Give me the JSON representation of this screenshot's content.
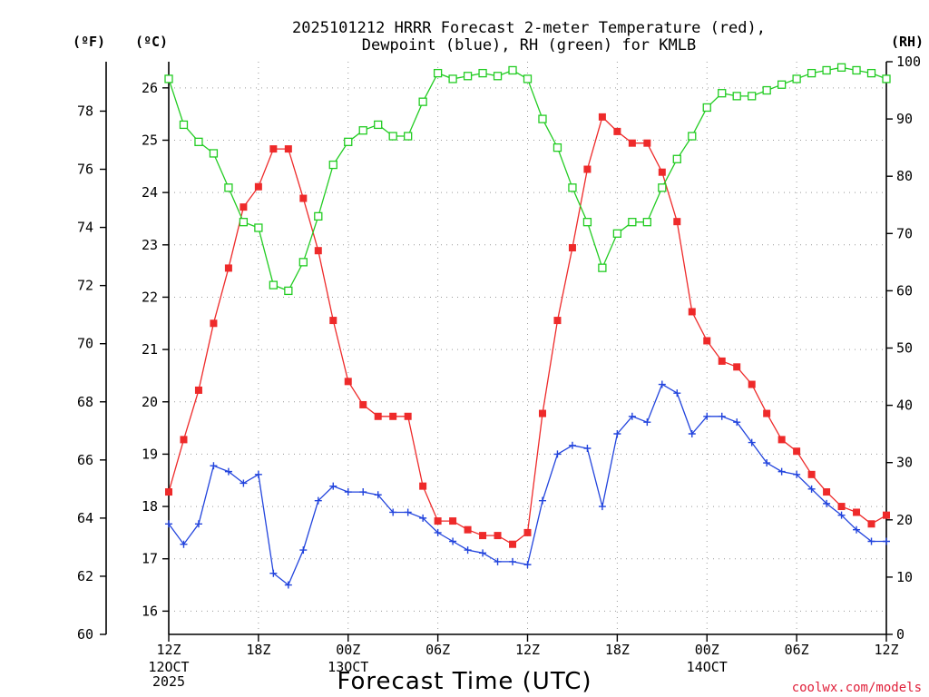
{
  "colors": {
    "temperature": "#ee2a2a",
    "dewpoint": "#2244dd",
    "rh": "#22cc22",
    "grid": "#999999",
    "credit": "#e0203a"
  },
  "header": {
    "title_line1": "2025101212 HRRR Forecast 2-meter Temperature (red),",
    "title_line2": "Dewpoint (blue), RH (green) for KMLB"
  },
  "axes": {
    "left_f_unit": "(ºF)",
    "left_c_unit": "(ºC)",
    "right_unit": "(RH)",
    "xlabel": "Forecast Time (UTC)",
    "credit": "coolwx.com/models"
  },
  "chart_data": {
    "type": "line",
    "title": "2025101212 HRRR Forecast 2-meter Temperature (red), Dewpoint (blue), RH (green) for KMLB",
    "xlabel": "Forecast Time (UTC)",
    "x_unit": "forecast hour from 2025-10-12 12Z",
    "x": [
      0,
      1,
      2,
      3,
      4,
      5,
      6,
      7,
      8,
      9,
      10,
      11,
      12,
      13,
      14,
      15,
      16,
      17,
      18,
      19,
      20,
      21,
      22,
      23,
      24,
      25,
      26,
      27,
      28,
      29,
      30,
      31,
      32,
      33,
      34,
      35,
      36,
      37,
      38,
      39,
      40,
      41,
      42,
      43,
      44,
      45,
      46,
      47,
      48
    ],
    "xlim": [
      0,
      48
    ],
    "x_ticks": [
      {
        "hour": 0,
        "label": "12Z",
        "sub": [
          "12OCT",
          "2025"
        ]
      },
      {
        "hour": 6,
        "label": "18Z",
        "sub": []
      },
      {
        "hour": 12,
        "label": "00Z",
        "sub": [
          "13OCT"
        ]
      },
      {
        "hour": 18,
        "label": "06Z",
        "sub": []
      },
      {
        "hour": 24,
        "label": "12Z",
        "sub": []
      },
      {
        "hour": 30,
        "label": "18Z",
        "sub": []
      },
      {
        "hour": 36,
        "label": "00Z",
        "sub": [
          "14OCT"
        ]
      },
      {
        "hour": 42,
        "label": "06Z",
        "sub": []
      },
      {
        "hour": 48,
        "label": "12Z",
        "sub": []
      }
    ],
    "left_f_ticks": [
      60,
      62,
      64,
      66,
      68,
      70,
      72,
      74,
      76,
      78
    ],
    "left_c_ticks": [
      16,
      17,
      18,
      19,
      20,
      21,
      22,
      23,
      24,
      25,
      26
    ],
    "right_rh_ticks": [
      0,
      10,
      20,
      30,
      40,
      50,
      60,
      70,
      80,
      90,
      100
    ],
    "ylim_f": [
      60,
      79.7
    ],
    "ylim_rh": [
      0,
      100
    ],
    "grid": true,
    "series": [
      {
        "name": "2-meter Temperature (red)",
        "unit": "F",
        "axis": "F",
        "marker": "filled-square",
        "values": [
          64.9,
          66.7,
          68.4,
          70.7,
          72.6,
          74.7,
          75.4,
          76.7,
          76.7,
          75.0,
          73.2,
          70.8,
          68.7,
          67.9,
          67.5,
          67.5,
          67.5,
          65.1,
          63.9,
          63.9,
          63.6,
          63.4,
          63.4,
          63.1,
          63.5,
          67.6,
          70.8,
          73.3,
          76.0,
          77.8,
          77.3,
          76.9,
          76.9,
          75.9,
          74.2,
          71.1,
          70.1,
          69.4,
          69.2,
          68.6,
          67.6,
          66.7,
          66.3,
          65.5,
          64.9,
          64.4,
          64.2,
          63.8,
          64.1
        ]
      },
      {
        "name": "Dewpoint (blue)",
        "unit": "F",
        "axis": "F",
        "marker": "plus",
        "values": [
          63.8,
          63.1,
          63.8,
          65.8,
          65.6,
          65.2,
          65.5,
          62.1,
          61.7,
          62.9,
          64.6,
          65.1,
          64.9,
          64.9,
          64.8,
          64.2,
          64.2,
          64.0,
          63.5,
          63.2,
          62.9,
          62.8,
          62.5,
          62.5,
          62.4,
          64.6,
          66.2,
          66.5,
          66.4,
          64.4,
          66.9,
          67.5,
          67.3,
          68.6,
          68.3,
          66.9,
          67.5,
          67.5,
          67.3,
          66.6,
          65.9,
          65.6,
          65.5,
          65.0,
          64.5,
          64.1,
          63.6,
          63.2,
          63.2
        ]
      },
      {
        "name": "RH (green)",
        "unit": "%",
        "axis": "RH",
        "marker": "open-square",
        "values": [
          97,
          89,
          86,
          84,
          78,
          72,
          71,
          61,
          60,
          65,
          73,
          82,
          86,
          88,
          89,
          87,
          87,
          93,
          98,
          97,
          97.5,
          98,
          97.5,
          98.5,
          97,
          90,
          85,
          78,
          72,
          64,
          70,
          72,
          72,
          78,
          83,
          87,
          92,
          94.5,
          94,
          94,
          95,
          96,
          97,
          98,
          98.5,
          99,
          98.5,
          98,
          97
        ]
      }
    ]
  }
}
